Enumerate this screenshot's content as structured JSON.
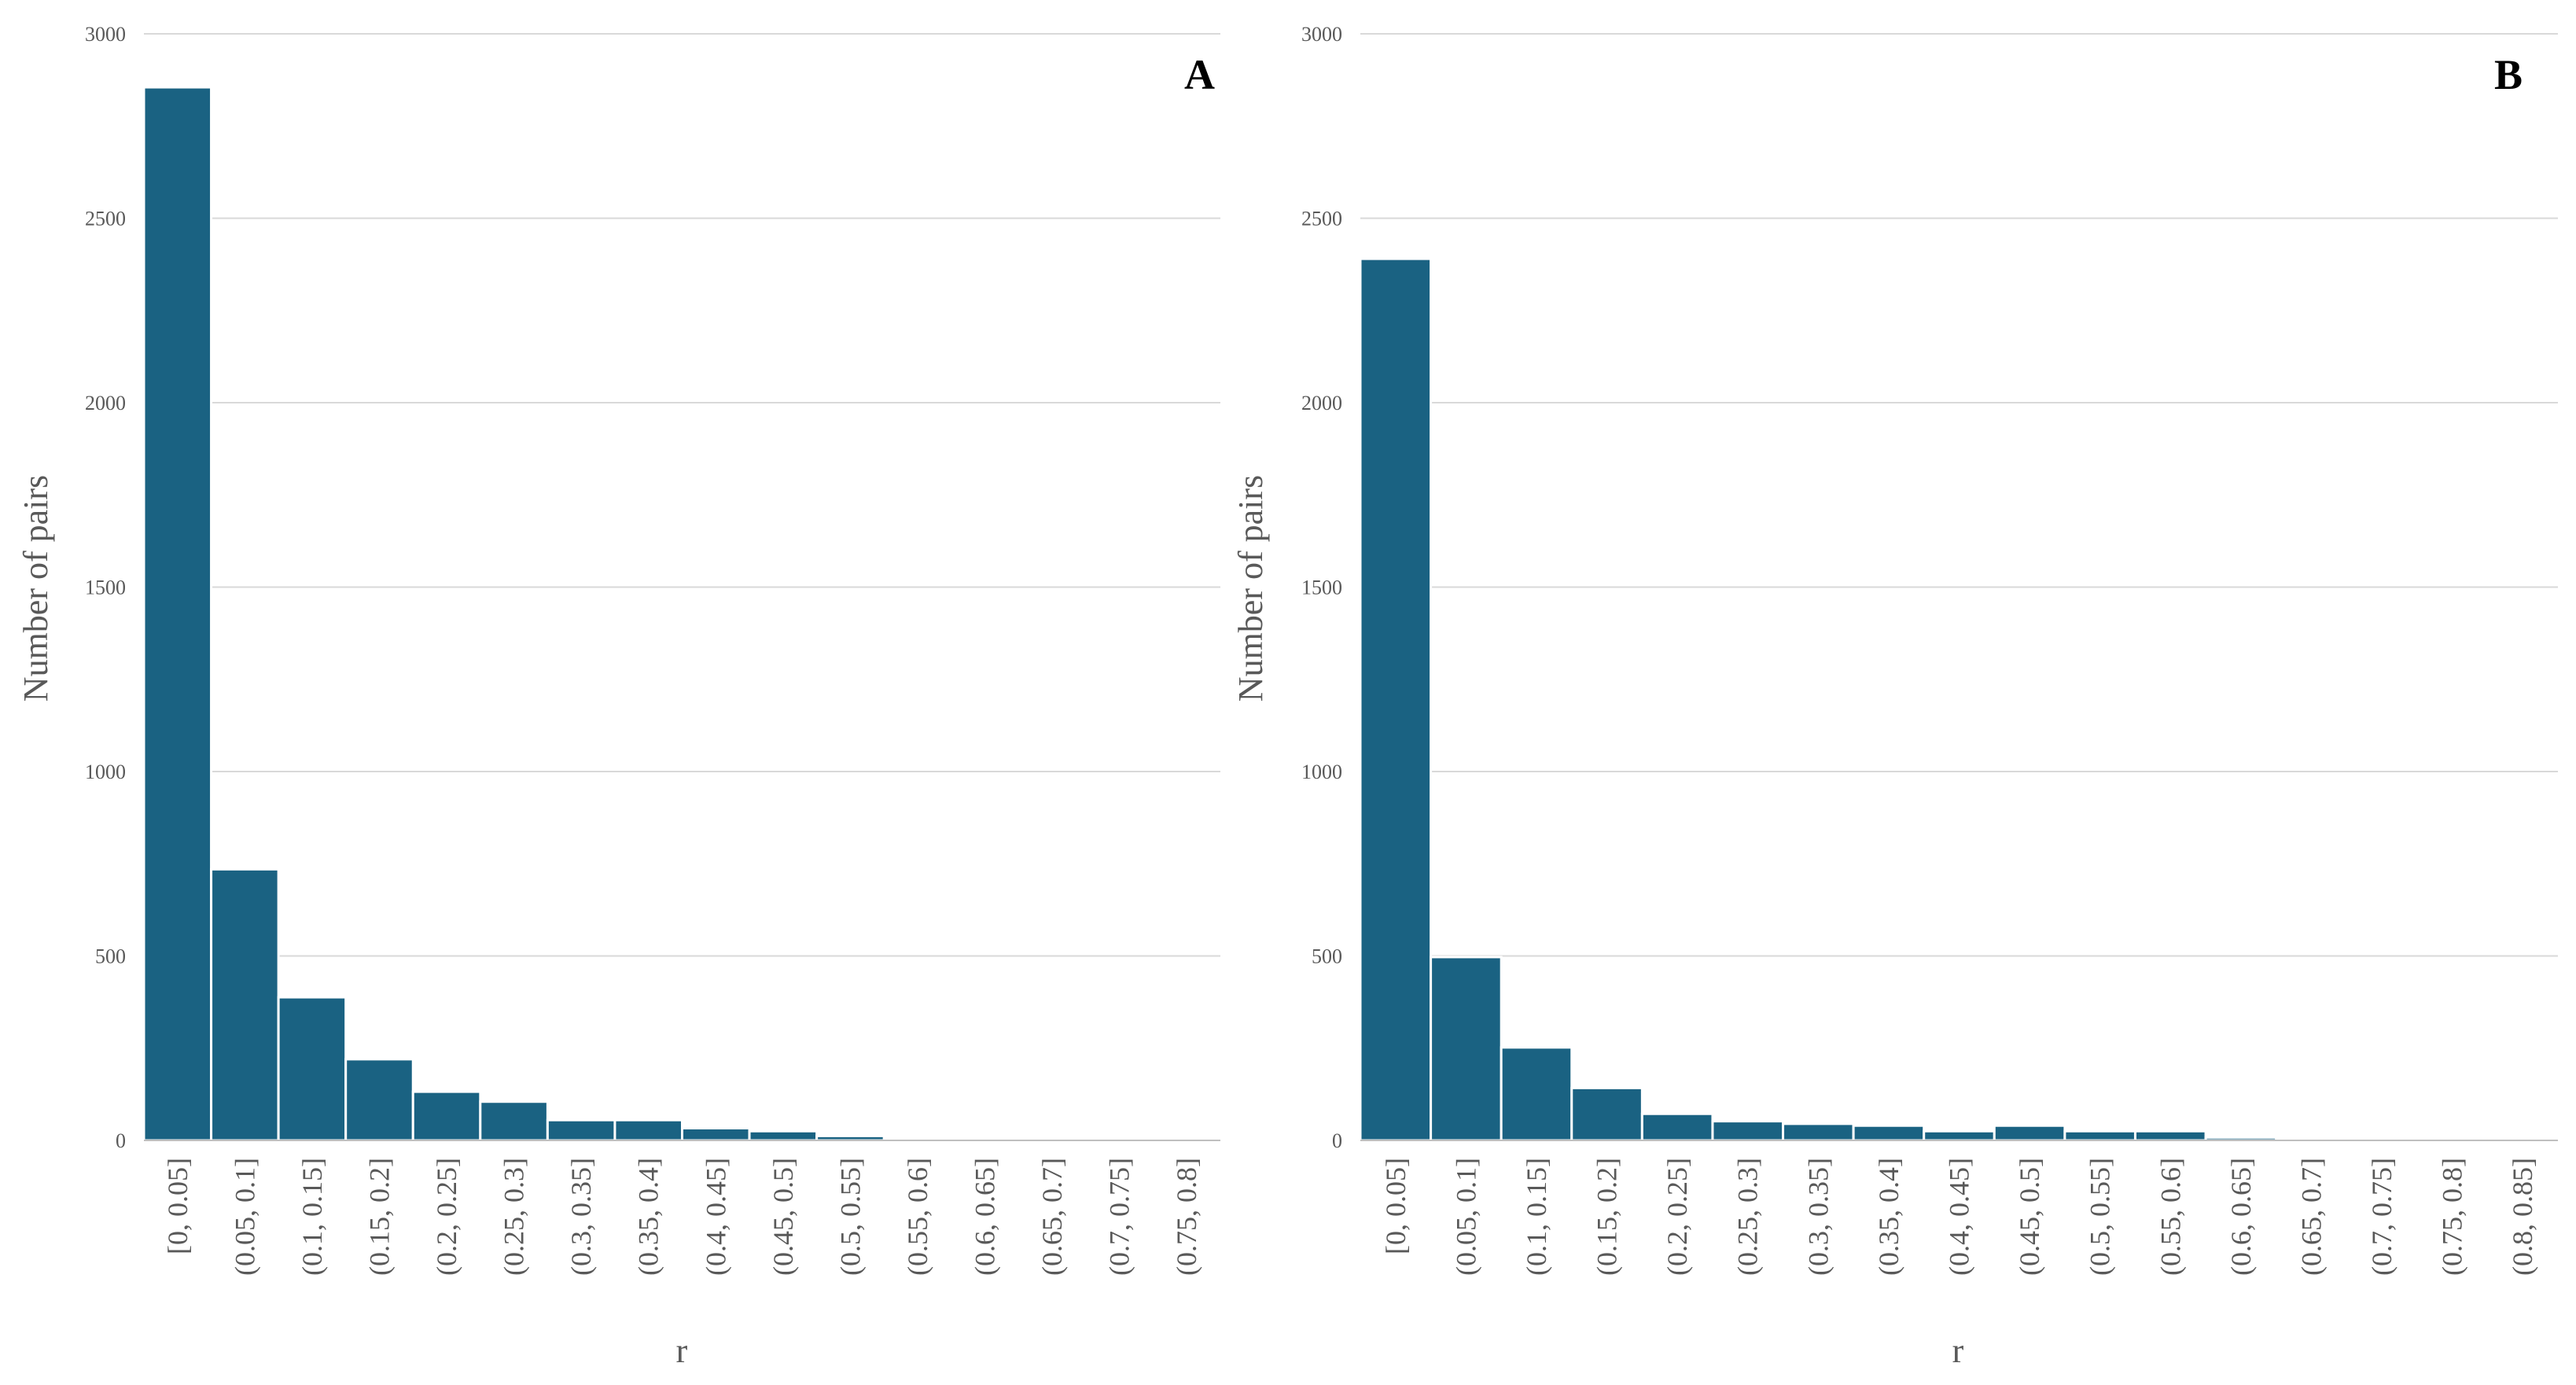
{
  "chart_data": [
    {
      "type": "bar",
      "panel_label": "A",
      "title": "",
      "xlabel": "r",
      "ylabel": "Number of pairs",
      "ylim": [
        0,
        3000
      ],
      "yticks": [
        0,
        500,
        1000,
        1500,
        2000,
        2500,
        3000
      ],
      "grid": true,
      "categories": [
        "[0, 0.05]",
        "(0.05, 0.1]",
        "(0.1, 0.15]",
        "(0.15, 0.2]",
        "(0.2, 0.25]",
        "(0.25, 0.3]",
        "(0.3, 0.35]",
        "(0.35, 0.4]",
        "(0.4, 0.45]",
        "(0.45, 0.5]",
        "(0.5, 0.55]",
        "(0.55, 0.6]",
        "(0.6, 0.65]",
        "(0.65, 0.7]",
        "(0.7, 0.75]",
        "(0.75, 0.8]"
      ],
      "values": [
        2855,
        735,
        388,
        220,
        132,
        105,
        55,
        55,
        33,
        25,
        12,
        0,
        0,
        0,
        0,
        0
      ],
      "bar_color": "#1a6282"
    },
    {
      "type": "bar",
      "panel_label": "B",
      "title": "",
      "xlabel": "r",
      "ylabel": "Number of pairs",
      "ylim": [
        0,
        3000
      ],
      "yticks": [
        0,
        500,
        1000,
        1500,
        2000,
        2500,
        3000
      ],
      "grid": true,
      "categories": [
        "[0, 0.05]",
        "(0.05, 0.1]",
        "(0.1, 0.15]",
        "(0.15, 0.2]",
        "(0.2, 0.25]",
        "(0.25, 0.3]",
        "(0.3, 0.35]",
        "(0.35, 0.4]",
        "(0.4, 0.45]",
        "(0.45, 0.5]",
        "(0.5, 0.55]",
        "(0.55, 0.6]",
        "(0.6, 0.65]",
        "(0.65, 0.7]",
        "(0.7, 0.75]",
        "(0.75, 0.8]",
        "(0.8, 0.85]"
      ],
      "values": [
        2390,
        497,
        252,
        142,
        72,
        52,
        45,
        40,
        25,
        40,
        25,
        25,
        8,
        0,
        0,
        0,
        0
      ],
      "bar_color": "#1a6282"
    }
  ]
}
